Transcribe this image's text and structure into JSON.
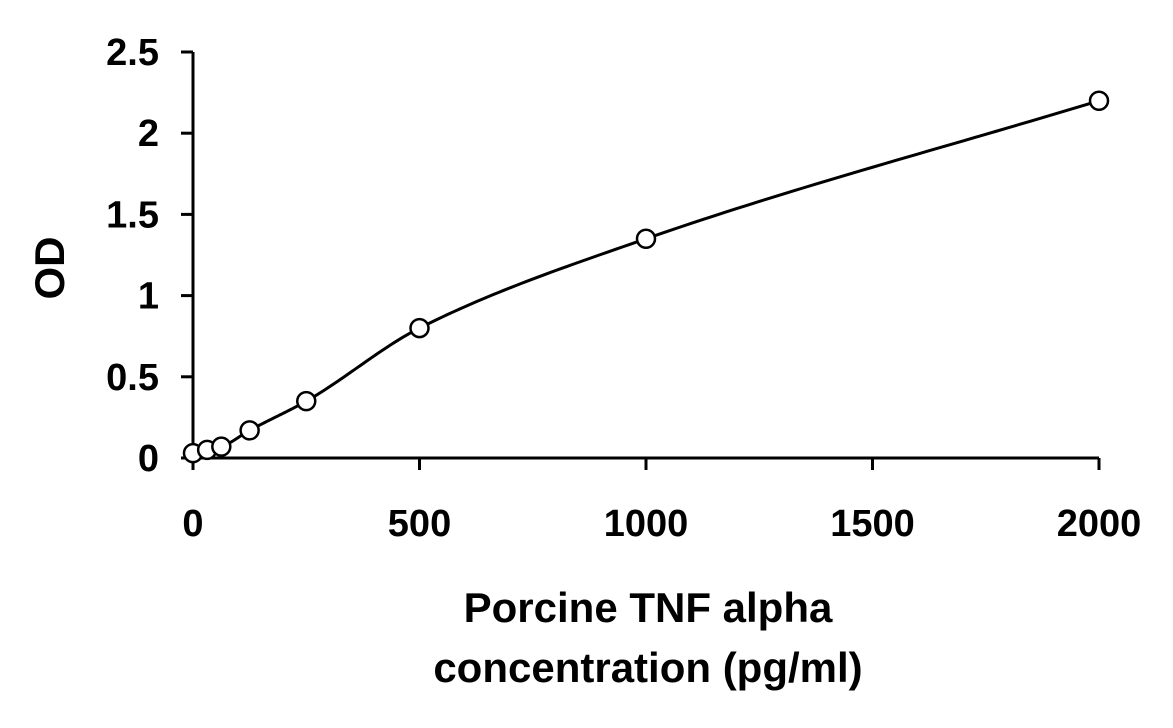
{
  "chart_data": {
    "type": "scatter",
    "title": "",
    "ylabel": "OD",
    "xlabel_lines": [
      "Porcine TNF alpha",
      "concentration (pg/ml)"
    ],
    "xlim": [
      0,
      2000
    ],
    "ylim": [
      0,
      2.5
    ],
    "x_ticks": [
      0,
      500,
      1000,
      1500,
      2000
    ],
    "y_ticks": [
      0,
      0.5,
      1,
      1.5,
      2,
      2.5
    ],
    "x_tick_labels": [
      "0",
      "500",
      "1000",
      "1500",
      "2000"
    ],
    "y_tick_labels": [
      "0",
      "0.5",
      "1",
      "1.5",
      "2",
      "2.5"
    ],
    "grid": false,
    "legend": "none",
    "points": [
      {
        "x": 0,
        "y": 0.03
      },
      {
        "x": 31.25,
        "y": 0.05
      },
      {
        "x": 62.5,
        "y": 0.07
      },
      {
        "x": 125,
        "y": 0.17
      },
      {
        "x": 250,
        "y": 0.35
      },
      {
        "x": 500,
        "y": 0.8
      },
      {
        "x": 1000,
        "y": 1.35
      },
      {
        "x": 2000,
        "y": 2.2
      }
    ],
    "fit_curve": true
  }
}
